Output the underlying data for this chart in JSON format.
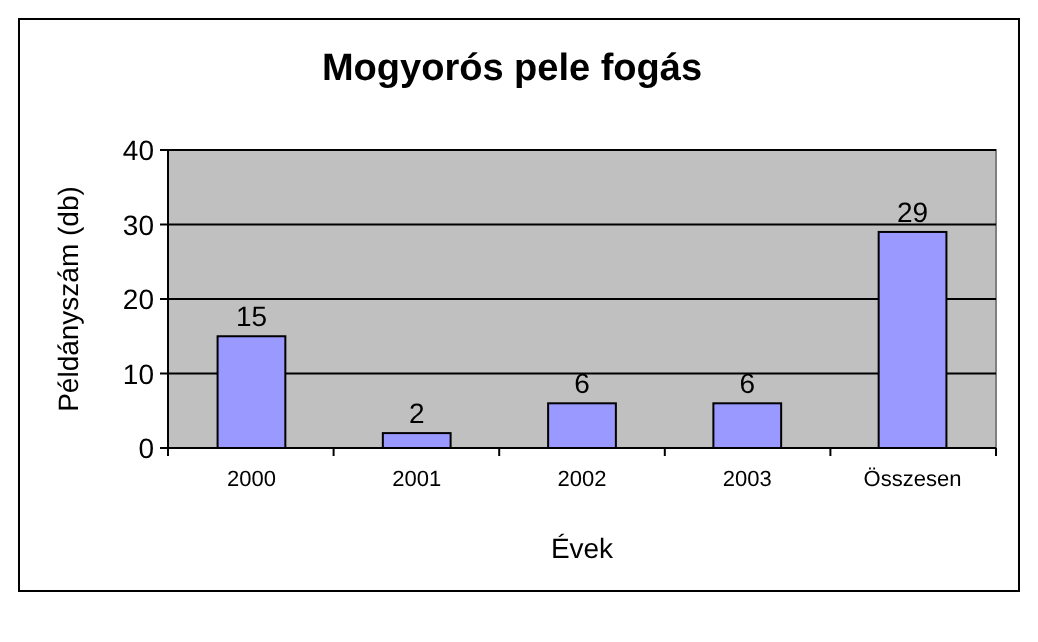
{
  "chart_data": {
    "type": "bar",
    "title": "Mogyorós pele fogás",
    "xlabel": "Évek",
    "ylabel": "Példányszám (db)",
    "categories": [
      "2000",
      "2001",
      "2002",
      "2003",
      "Összesen"
    ],
    "values": [
      15,
      2,
      6,
      6,
      29
    ],
    "color": "#9999ff",
    "ylim": [
      0,
      40
    ],
    "yticks": [
      0,
      10,
      20,
      30,
      40
    ],
    "grid": "y",
    "data_labels": true
  }
}
